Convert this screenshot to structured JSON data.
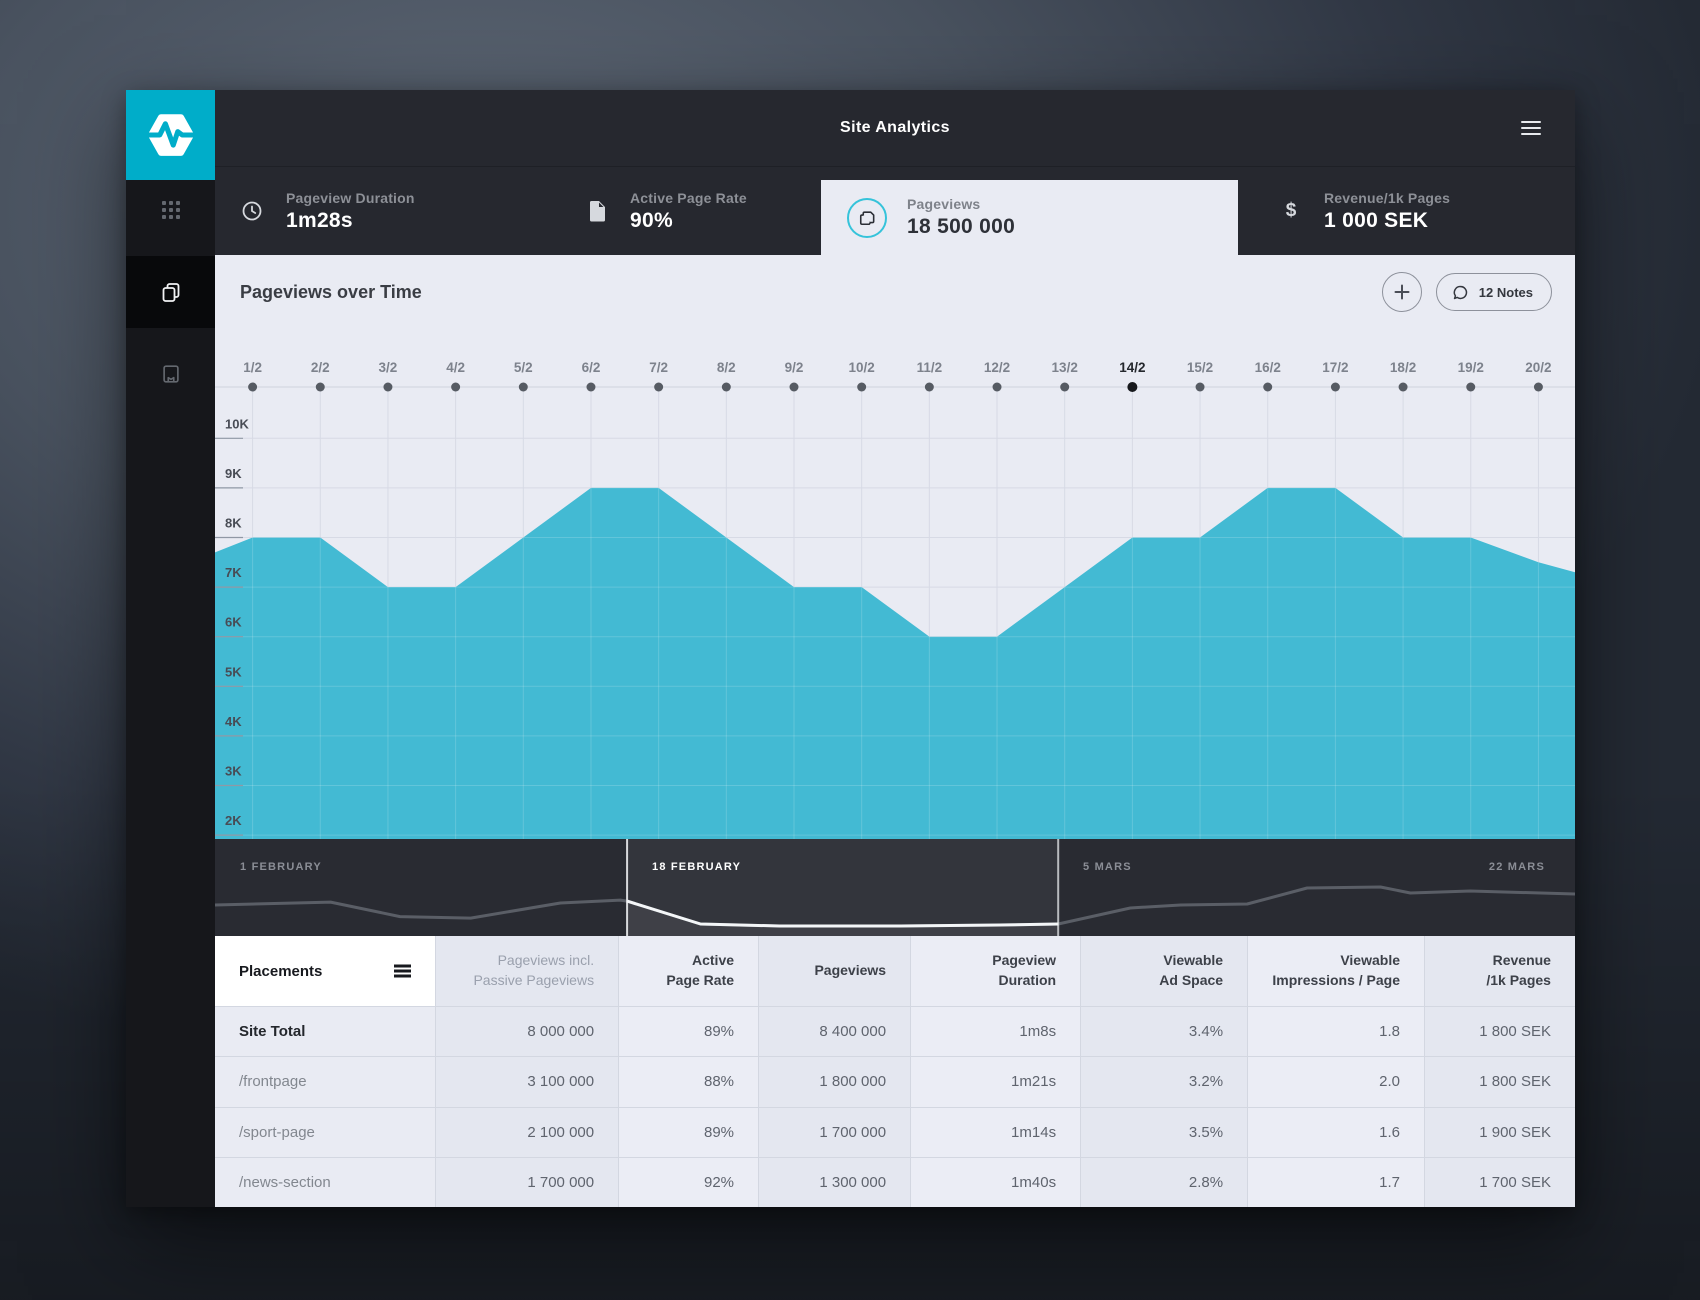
{
  "app": {
    "title": "Site Analytics"
  },
  "colors": {
    "logo_teal": "#00adc9",
    "accent_teal": "#43bad3",
    "chrome_dark": "#26282f",
    "panel_light": "#e9ebf3"
  },
  "sidebar": {
    "icons": [
      "apps-grid",
      "pages-copy",
      "notebook"
    ]
  },
  "kpis": [
    {
      "icon": "clock",
      "label": "Pageview Duration",
      "value": "1m28s",
      "active": false
    },
    {
      "icon": "document",
      "label": "Active Page Rate",
      "value": "90%",
      "active": false
    },
    {
      "icon": "pages-copy",
      "label": "Pageviews",
      "value": "18 500 000",
      "active": true
    },
    {
      "icon": "dollar",
      "label": "Revenue/1k Pages",
      "value": "1 000 SEK",
      "active": false
    }
  ],
  "chart": {
    "title": "Pageviews over Time",
    "notes_label": "12 Notes"
  },
  "chart_data": {
    "type": "area",
    "title": "Pageviews over Time",
    "x": [
      "1/2",
      "2/2",
      "3/2",
      "4/2",
      "5/2",
      "6/2",
      "7/2",
      "8/2",
      "9/2",
      "10/2",
      "11/2",
      "12/2",
      "13/2",
      "14/2",
      "15/2",
      "16/2",
      "17/2",
      "18/2",
      "19/2",
      "20/2"
    ],
    "values_thousands": [
      8,
      8,
      7,
      7,
      8,
      9,
      9,
      8,
      7,
      7,
      6,
      6,
      7,
      8,
      8,
      9,
      9,
      8,
      8,
      7.5
    ],
    "edge_values_thousands": {
      "left": 7.7,
      "right": 7.3
    },
    "selected_x": "14/2",
    "selected_index": 13,
    "y_ticks": [
      "10K",
      "9K",
      "8K",
      "7K",
      "6K",
      "5K",
      "4K",
      "3K",
      "2K"
    ],
    "ylim_thousands": [
      2,
      10
    ],
    "grid": true,
    "legend": "none",
    "series_color": "#43bad3"
  },
  "timeline": {
    "labels": [
      {
        "text": "1 FEBRUARY",
        "selected": false
      },
      {
        "text": "18 FEBRUARY",
        "selected": true
      },
      {
        "text": "5 MARS",
        "selected": false
      },
      {
        "text": "22 MARS",
        "selected": false
      }
    ],
    "selection_range": [
      0.303,
      0.62
    ],
    "sparkline": [
      [
        0,
        0.68
      ],
      [
        0.085,
        0.65
      ],
      [
        0.136,
        0.8
      ],
      [
        0.188,
        0.815
      ],
      [
        0.254,
        0.66
      ],
      [
        0.298,
        0.63
      ],
      [
        0.303,
        0.64
      ],
      [
        0.357,
        0.876
      ],
      [
        0.415,
        0.897
      ],
      [
        0.504,
        0.897
      ],
      [
        0.577,
        0.887
      ],
      [
        0.62,
        0.876
      ],
      [
        0.673,
        0.711
      ],
      [
        0.71,
        0.68
      ],
      [
        0.759,
        0.67
      ],
      [
        0.803,
        0.505
      ],
      [
        0.857,
        0.495
      ],
      [
        0.879,
        0.557
      ],
      [
        0.923,
        0.536
      ],
      [
        1,
        0.567
      ]
    ]
  },
  "table": {
    "headers": [
      {
        "lines": [
          "Placements"
        ]
      },
      {
        "lines": [
          "Pageviews incl.",
          "Passive Pageviews"
        ]
      },
      {
        "lines": [
          "Active",
          "Page Rate"
        ]
      },
      {
        "lines": [
          "Pageviews"
        ]
      },
      {
        "lines": [
          "Pageview",
          "Duration"
        ]
      },
      {
        "lines": [
          "Viewable",
          "Ad Space"
        ]
      },
      {
        "lines": [
          "Viewable",
          "Impressions / Page"
        ]
      },
      {
        "lines": [
          "Revenue",
          "/1k Pages"
        ]
      }
    ],
    "rows": [
      [
        "Site Total",
        "8 000 000",
        "89%",
        "8 400 000",
        "1m8s",
        "3.4%",
        "1.8",
        "1 800 SEK"
      ],
      [
        "/frontpage",
        "3 100 000",
        "88%",
        "1 800 000",
        "1m21s",
        "3.2%",
        "2.0",
        "1 800 SEK"
      ],
      [
        "/sport-page",
        "2 100 000",
        "89%",
        "1 700 000",
        "1m14s",
        "3.5%",
        "1.6",
        "1 900 SEK"
      ],
      [
        "/news-section",
        "1 700 000",
        "92%",
        "1 300 000",
        "1m40s",
        "2.8%",
        "1.7",
        "1 700 SEK"
      ]
    ]
  }
}
